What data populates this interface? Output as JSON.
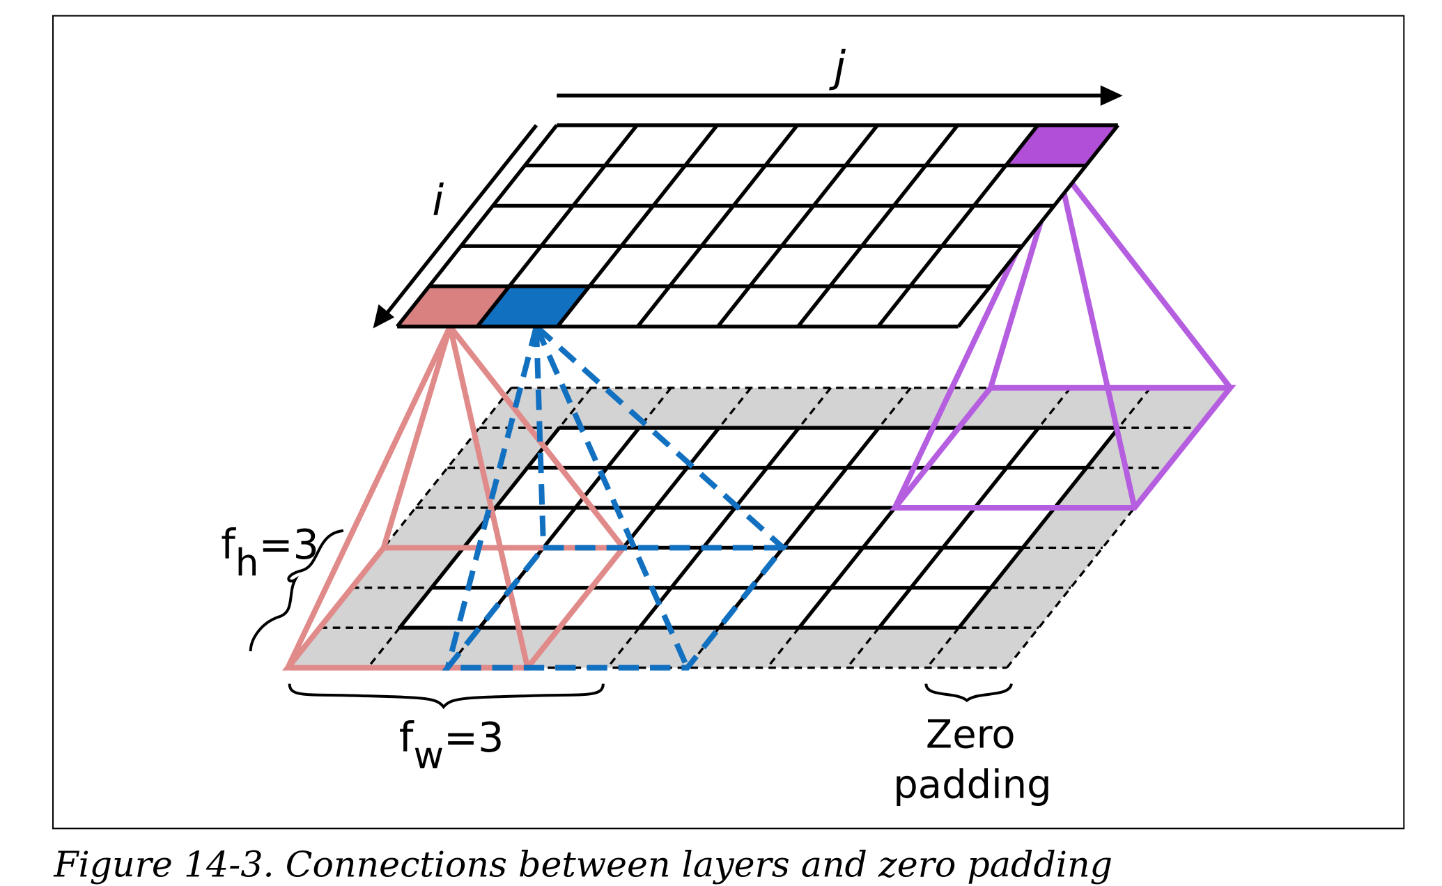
{
  "axis_labels": {
    "j": "j",
    "i": "i"
  },
  "filter_height": {
    "symbol": "f",
    "subscript": "h",
    "value": "=3"
  },
  "filter_width": {
    "symbol": "f",
    "subscript": "w",
    "value": "=3"
  },
  "zero_padding": [
    "Zero",
    "padding"
  ],
  "caption": "Figure 14-3. Connections between layers and zero padding"
}
